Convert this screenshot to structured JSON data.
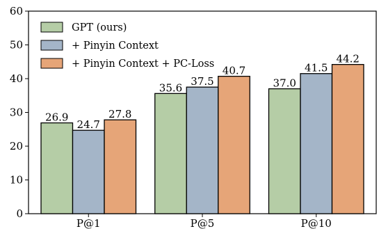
{
  "chart_data": {
    "type": "bar",
    "categories": [
      "P@1",
      "P@5",
      "P@10"
    ],
    "series": [
      {
        "name": "GPT (ours)",
        "values": [
          26.9,
          35.6,
          37.0
        ],
        "color": "#b5cda6"
      },
      {
        "name": "+ Pinyin Context",
        "values": [
          24.7,
          37.5,
          41.5
        ],
        "color": "#a4b5c8"
      },
      {
        "name": "+ Pinyin Context + PC-Loss",
        "values": [
          27.8,
          40.7,
          44.2
        ],
        "color": "#e6a578"
      }
    ],
    "value_labels": [
      [
        "26.9",
        "35.6",
        "37.0"
      ],
      [
        "24.7",
        "37.5",
        "41.5"
      ],
      [
        "27.8",
        "40.7",
        "44.2"
      ]
    ],
    "yticks": [
      "0",
      "10",
      "20",
      "30",
      "40",
      "50",
      "60"
    ],
    "ylim": [
      0,
      60
    ],
    "legend_position": "top-left",
    "grid": false
  }
}
